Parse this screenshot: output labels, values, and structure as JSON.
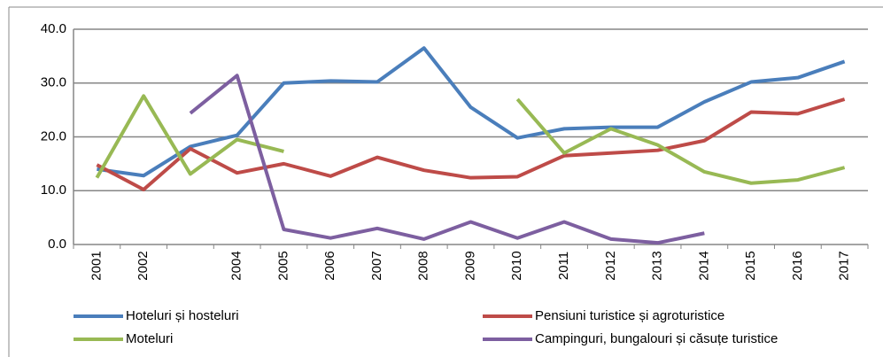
{
  "chart_data": {
    "type": "line",
    "categories": [
      "2001",
      "2002",
      null,
      "2004",
      "2005",
      "2006",
      "2007",
      "2008",
      "2009",
      "2010",
      "2011",
      "2012",
      "2013",
      "2014",
      "2015",
      "2016",
      "2017"
    ],
    "series": [
      {
        "name": "Hoteluri și hosteluri",
        "color": "#4a7ebb",
        "values": [
          14,
          12.8,
          18.2,
          20.3,
          30,
          30.4,
          30.2,
          36.5,
          25.5,
          19.8,
          21.5,
          21.8,
          21.8,
          26.5,
          30.2,
          31,
          34
        ]
      },
      {
        "name": "Pensiuni turistice și agroturistice",
        "color": "#be4b48",
        "values": [
          14.8,
          10.2,
          17.8,
          13.3,
          15,
          12.7,
          16.2,
          13.8,
          12.4,
          12.6,
          16.5,
          17,
          17.5,
          19.3,
          24.6,
          24.3,
          27
        ]
      },
      {
        "name": "Moteluri",
        "color": "#98b954",
        "values": [
          12.4,
          27.6,
          13.1,
          19.5,
          17.3,
          null,
          null,
          null,
          null,
          27,
          17,
          21.5,
          18.5,
          13.5,
          11.4,
          12,
          14.3
        ]
      },
      {
        "name": "Campinguri, bungalouri și căsuțe turistice",
        "color": "#7d5fa0",
        "values": [
          null,
          null,
          24.4,
          31.4,
          2.8,
          1.2,
          3,
          1,
          4.2,
          1.2,
          4.2,
          1,
          0.3,
          2.1,
          null,
          null,
          null
        ]
      }
    ],
    "ylim": [
      0,
      40
    ],
    "yticks": [
      {
        "value": 0,
        "label": "0.0"
      },
      {
        "value": 10,
        "label": "10.0"
      },
      {
        "value": 20,
        "label": "20.0"
      },
      {
        "value": 30,
        "label": "30.0"
      },
      {
        "value": 40,
        "label": "40.0"
      }
    ],
    "grid": true,
    "legend": "bottom"
  }
}
